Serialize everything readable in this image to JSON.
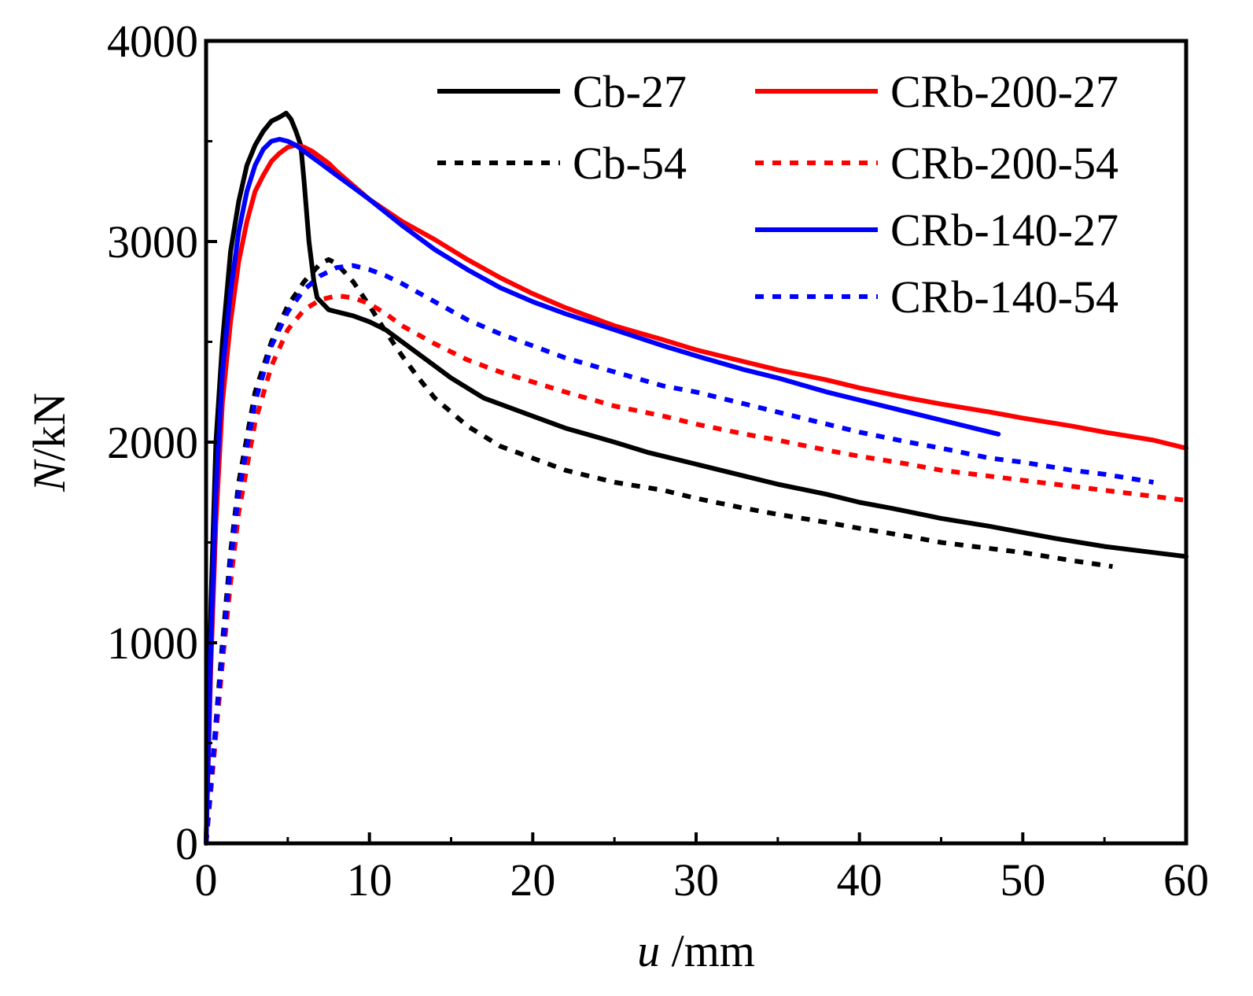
{
  "chart_data": {
    "type": "line",
    "title": "",
    "xlabel": {
      "var": "u",
      "unit": " /mm"
    },
    "ylabel": {
      "var": "N",
      "unit": "/kN"
    },
    "xlim": [
      0,
      60
    ],
    "ylim": [
      0,
      4000
    ],
    "xticks": [
      "0",
      "10",
      "20",
      "30",
      "40",
      "50",
      "60"
    ],
    "yticks": [
      "0",
      "1000",
      "2000",
      "3000",
      "4000"
    ],
    "xtick_values": [
      0,
      10,
      20,
      30,
      40,
      50,
      60
    ],
    "ytick_values": [
      0,
      1000,
      2000,
      3000,
      4000
    ],
    "grid": false,
    "legend_position": "top-right",
    "series": [
      {
        "name": "Cb-27",
        "color": "#000000",
        "style": "solid",
        "x": [
          0,
          0.3,
          0.6,
          1.0,
          1.5,
          2.0,
          2.5,
          3.0,
          3.5,
          4.0,
          4.5,
          4.9,
          5.2,
          5.5,
          5.8,
          6.0,
          6.3,
          6.6,
          6.8,
          7.5,
          8.0,
          9.0,
          10.0,
          11.0,
          12.0,
          13.0,
          14.0,
          15.0,
          17.0,
          20.0,
          22.0,
          25.0,
          27.0,
          30.0,
          33.0,
          35.0,
          38.0,
          40.0,
          42.0,
          45.0,
          48.0,
          50.0,
          52.0,
          55.0,
          58.0,
          60.0
        ],
        "values": [
          0,
          1200,
          2000,
          2500,
          2950,
          3200,
          3380,
          3480,
          3550,
          3600,
          3620,
          3640,
          3610,
          3550,
          3480,
          3300,
          3000,
          2800,
          2720,
          2660,
          2650,
          2630,
          2600,
          2560,
          2500,
          2440,
          2380,
          2320,
          2220,
          2130,
          2070,
          2000,
          1950,
          1890,
          1830,
          1790,
          1740,
          1700,
          1670,
          1620,
          1580,
          1550,
          1520,
          1480,
          1450,
          1430
        ]
      },
      {
        "name": "Cb-54",
        "color": "#000000",
        "style": "dotted",
        "x": [
          0,
          0.5,
          1.0,
          1.5,
          2.0,
          3.0,
          4.0,
          5.0,
          6.0,
          7.0,
          7.5,
          8.0,
          9.0,
          10.0,
          11.0,
          12.0,
          13.0,
          14.0,
          16.0,
          18.0,
          20.0,
          22.0,
          25.0,
          28.0,
          30.0,
          33.0,
          35.0,
          38.0,
          40.0,
          43.0,
          45.0,
          48.0,
          50.0,
          53.0,
          55.5
        ],
        "values": [
          0,
          500,
          1000,
          1450,
          1800,
          2250,
          2500,
          2680,
          2800,
          2890,
          2910,
          2890,
          2800,
          2680,
          2550,
          2430,
          2320,
          2220,
          2080,
          1980,
          1920,
          1860,
          1800,
          1760,
          1720,
          1670,
          1640,
          1600,
          1570,
          1530,
          1500,
          1470,
          1450,
          1410,
          1380
        ]
      },
      {
        "name": "CRb-200-27",
        "color": "#ff0000",
        "style": "solid",
        "x": [
          0,
          0.3,
          0.6,
          1.0,
          1.5,
          2.0,
          2.5,
          3.0,
          3.5,
          4.0,
          4.5,
          5.0,
          5.5,
          6.0,
          6.5,
          7.0,
          7.5,
          8.0,
          9.0,
          10.0,
          12.0,
          14.0,
          16.0,
          18.0,
          20.0,
          22.0,
          25.0,
          28.0,
          30.0,
          33.0,
          35.0,
          38.0,
          40.0,
          43.0,
          45.0,
          48.0,
          50.0,
          53.0,
          55.0,
          58.0,
          60.0
        ],
        "values": [
          0,
          900,
          1600,
          2200,
          2600,
          2900,
          3100,
          3250,
          3330,
          3400,
          3440,
          3470,
          3480,
          3470,
          3450,
          3420,
          3390,
          3350,
          3280,
          3210,
          3100,
          3010,
          2910,
          2820,
          2740,
          2670,
          2580,
          2510,
          2460,
          2400,
          2360,
          2310,
          2270,
          2220,
          2190,
          2150,
          2120,
          2080,
          2050,
          2010,
          1970
        ]
      },
      {
        "name": "CRb-200-54",
        "color": "#ff0000",
        "style": "dotted",
        "x": [
          0,
          0.5,
          1.0,
          1.5,
          2.0,
          3.0,
          4.0,
          5.0,
          6.0,
          7.0,
          8.0,
          9.0,
          10.0,
          11.0,
          12.0,
          14.0,
          16.0,
          18.0,
          20.0,
          22.0,
          25.0,
          28.0,
          30.0,
          33.0,
          35.0,
          38.0,
          40.0,
          43.0,
          45.0,
          48.0,
          50.0,
          53.0,
          55.0,
          58.0,
          60.0
        ],
        "values": [
          0,
          450,
          900,
          1300,
          1650,
          2100,
          2380,
          2560,
          2660,
          2710,
          2730,
          2720,
          2690,
          2640,
          2580,
          2490,
          2410,
          2350,
          2300,
          2250,
          2180,
          2130,
          2090,
          2040,
          2010,
          1960,
          1930,
          1890,
          1860,
          1830,
          1810,
          1780,
          1760,
          1730,
          1710
        ]
      },
      {
        "name": "CRb-140-27",
        "color": "#0000ff",
        "style": "solid",
        "x": [
          0,
          0.3,
          0.6,
          1.0,
          1.5,
          2.0,
          2.5,
          3.0,
          3.5,
          4.0,
          4.5,
          5.0,
          5.5,
          6.0,
          6.5,
          7.0,
          7.5,
          8.0,
          9.0,
          10.0,
          12.0,
          14.0,
          16.0,
          18.0,
          20.0,
          22.0,
          25.0,
          28.0,
          30.0,
          33.0,
          35.0,
          38.0,
          40.0,
          43.0,
          45.0,
          48.5
        ],
        "values": [
          0,
          1000,
          1750,
          2350,
          2750,
          3050,
          3250,
          3380,
          3460,
          3500,
          3510,
          3500,
          3480,
          3450,
          3420,
          3390,
          3360,
          3330,
          3270,
          3210,
          3080,
          2960,
          2860,
          2770,
          2700,
          2640,
          2560,
          2480,
          2430,
          2360,
          2320,
          2250,
          2210,
          2150,
          2110,
          2040
        ]
      },
      {
        "name": "CRb-140-54",
        "color": "#0000ff",
        "style": "dotted",
        "x": [
          0,
          0.5,
          1.0,
          1.5,
          2.0,
          3.0,
          4.0,
          5.0,
          6.0,
          7.0,
          8.0,
          9.0,
          10.0,
          11.0,
          12.0,
          14.0,
          16.0,
          18.0,
          20.0,
          22.0,
          25.0,
          28.0,
          30.0,
          33.0,
          35.0,
          38.0,
          40.0,
          43.0,
          45.0,
          48.0,
          50.0,
          53.0,
          55.0,
          58.0
        ],
        "values": [
          0,
          500,
          950,
          1400,
          1750,
          2200,
          2480,
          2650,
          2760,
          2830,
          2870,
          2880,
          2860,
          2830,
          2790,
          2700,
          2610,
          2540,
          2480,
          2420,
          2350,
          2280,
          2250,
          2190,
          2150,
          2090,
          2050,
          2000,
          1970,
          1920,
          1900,
          1860,
          1840,
          1800
        ]
      }
    ]
  }
}
